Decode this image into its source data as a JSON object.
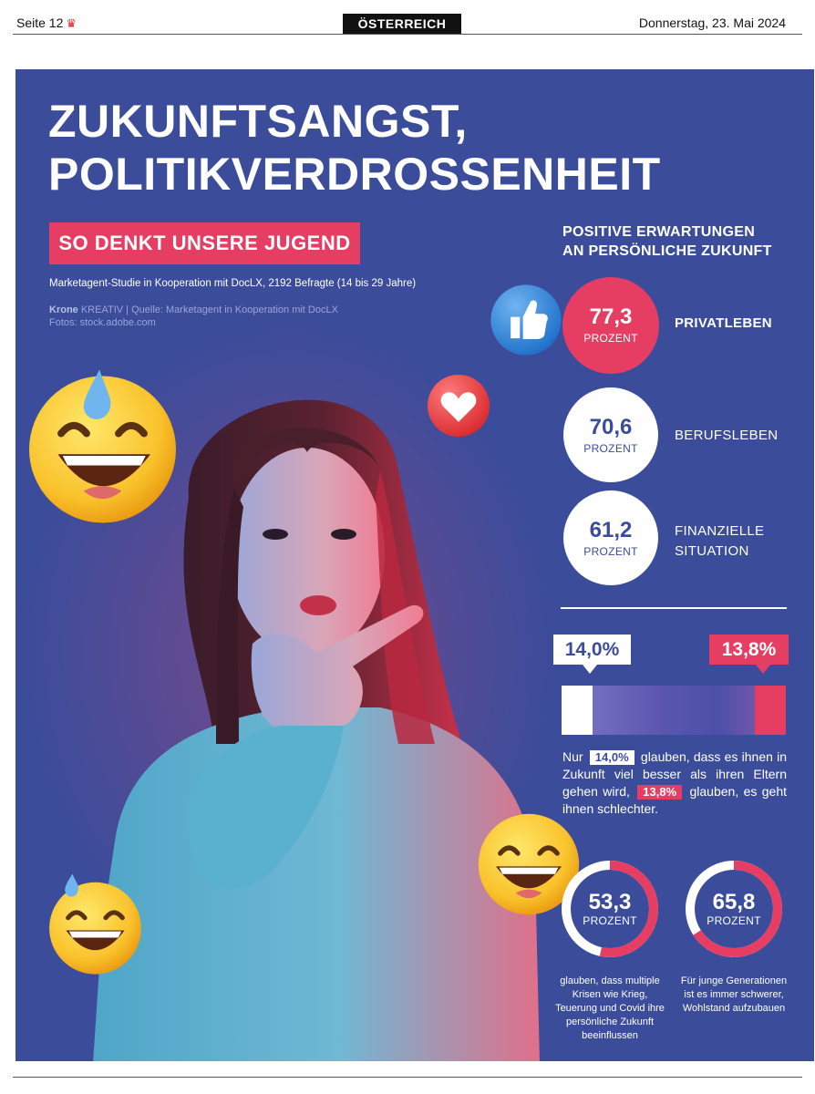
{
  "header": {
    "page_label": "Seite 12",
    "section": "ÖSTERREICH",
    "date": "Donnerstag, 23. Mai 2024"
  },
  "headline": {
    "line1": "ZUKUNFTSANGST,",
    "line2": "POLITIKVERDROSSENHEIT",
    "tag": "SO DENKT UNSERE JUGEND",
    "study": "Marketagent-Studie in Kooperation mit DocLX, 2192 Befragte (14 bis 29 Jahre)",
    "credit_brand": "Krone",
    "credit_brand2": "KREATIV",
    "credit_source": "| Quelle: Marketagent in Kooperation mit DocLX",
    "credit_photos": "Fotos: stock.adobe.com"
  },
  "positive": {
    "title_line1": "POSITIVE ERWARTUNGEN",
    "title_line2": "AN PERSÖNLICHE ZUKUNFT",
    "items": [
      {
        "value": "77,3",
        "unit": "PROZENT",
        "label": "PRIVATLEBEN"
      },
      {
        "value": "70,6",
        "unit": "PROZENT",
        "label": "BERUFSLEBEN"
      },
      {
        "value": "61,2",
        "unit": "PROZENT",
        "label_line1": "FINANZIELLE",
        "label_line2": "SITUATION"
      }
    ]
  },
  "comparison": {
    "better_pct": "14,0%",
    "worse_pct": "13,8%",
    "better_fraction": 0.14,
    "worse_fraction": 0.138,
    "text_part1": "Nur",
    "text_part2": "glauben, dass es ihnen in Zukunft viel besser als ihren Eltern gehen wird,",
    "text_part3": "glauben, es geht ihnen schlechter."
  },
  "donuts": [
    {
      "value": "53,3",
      "fraction": 0.533,
      "unit": "PROZENT",
      "caption": "glauben, dass multiple Krisen wie Krieg, Teuerung und Covid ihre persönliche Zukunft beeinflussen"
    },
    {
      "value": "65,8",
      "fraction": 0.658,
      "unit": "PROZENT",
      "caption": "Für junge Generationen ist es immer schwerer, Wohlstand aufzubauen"
    }
  ],
  "colors": {
    "panel": "#3b4c9b",
    "accent_pink": "#e63e63",
    "white": "#ffffff"
  },
  "icons": [
    "crown-icon",
    "thumbs-up-icon",
    "heart-icon",
    "sweat-grin-emoji",
    "laughing-emoji"
  ]
}
